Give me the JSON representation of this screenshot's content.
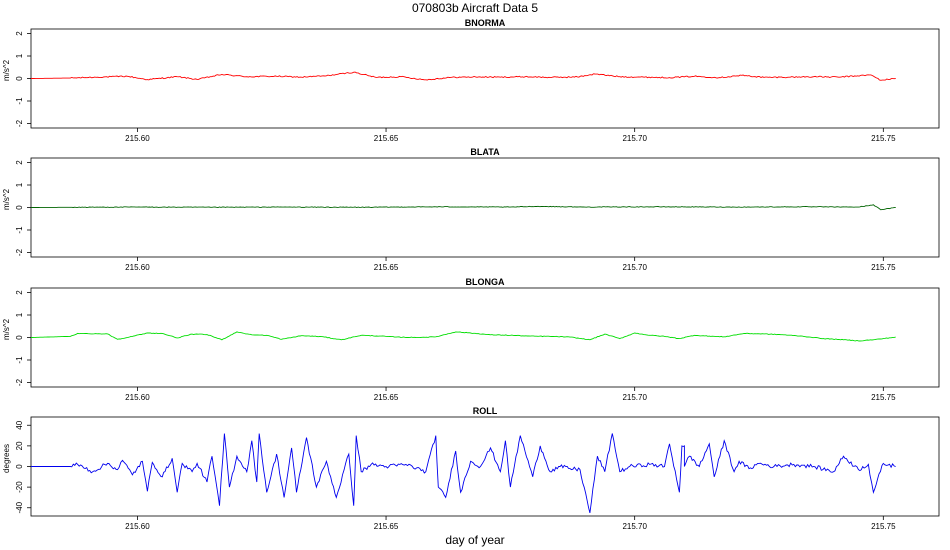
{
  "figure": {
    "title": "070803b   Aircraft Data 5",
    "xlabel": "day of year"
  },
  "chart_data": [
    {
      "type": "line",
      "title": "BNORMA",
      "ylabel": "m/s^2",
      "color": "#ff0000",
      "xlim": [
        215.5786,
        215.7612
      ],
      "ylim": [
        -2.2,
        2.2
      ],
      "xticks": [
        "215.60",
        "215.65",
        "215.70",
        "215.75"
      ],
      "yticks": [
        "-2",
        "-1",
        "0",
        "1",
        "2"
      ],
      "series": [
        {
          "x": [
            215.5786,
            215.5865,
            215.592,
            215.598,
            215.602,
            215.608,
            215.612,
            215.617,
            215.622,
            215.628,
            215.633,
            215.638,
            215.6435,
            215.648,
            215.653,
            215.658,
            215.663,
            215.668,
            215.673,
            215.678,
            215.683,
            215.6885,
            215.692,
            215.697,
            215.702,
            215.707,
            215.712,
            215.717,
            215.7215,
            215.726,
            215.731,
            215.736,
            215.741,
            215.7475,
            215.7495,
            215.7525
          ],
          "y": [
            0,
            0.02,
            0.06,
            0.1,
            -0.05,
            0.08,
            -0.04,
            0.18,
            0.08,
            0.1,
            0.06,
            0.12,
            0.28,
            0.05,
            0.08,
            -0.06,
            0.05,
            0.07,
            0.06,
            0.08,
            0.05,
            0.07,
            0.2,
            0.08,
            0.06,
            0.04,
            0.1,
            0.04,
            0.14,
            0.05,
            0.06,
            0.08,
            0.06,
            0.16,
            -0.08,
            0
          ]
        }
      ]
    },
    {
      "type": "line",
      "title": "BLATA",
      "ylabel": "m/s^2",
      "color": "#006400",
      "xlim": [
        215.5786,
        215.7612
      ],
      "ylim": [
        -2.2,
        2.2
      ],
      "xticks": [
        "215.60",
        "215.65",
        "215.70",
        "215.75"
      ],
      "yticks": [
        "-2",
        "-1",
        "0",
        "1",
        "2"
      ],
      "series": [
        {
          "x": [
            215.5786,
            215.5865,
            215.6,
            215.615,
            215.63,
            215.645,
            215.66,
            215.675,
            215.68,
            215.69,
            215.705,
            215.72,
            215.735,
            215.745,
            215.748,
            215.7495,
            215.7525
          ],
          "y": [
            0,
            0.01,
            0.02,
            0.01,
            0.02,
            0.01,
            0.03,
            0.02,
            0.05,
            0.02,
            0.03,
            0.02,
            0.03,
            0.02,
            0.12,
            -0.1,
            0
          ]
        }
      ]
    },
    {
      "type": "line",
      "title": "BLONGA",
      "ylabel": "m/s^2",
      "color": "#00dd00",
      "xlim": [
        215.5786,
        215.7612
      ],
      "ylim": [
        -2.2,
        2.2
      ],
      "xticks": [
        "215.60",
        "215.65",
        "215.70",
        "215.75"
      ],
      "yticks": [
        "-2",
        "-1",
        "0",
        "1",
        "2"
      ],
      "series": [
        {
          "x": [
            215.5786,
            215.5865,
            215.588,
            215.594,
            215.596,
            215.599,
            215.602,
            215.605,
            215.608,
            215.611,
            215.614,
            215.617,
            215.62,
            215.623,
            215.626,
            215.629,
            215.633,
            215.637,
            215.641,
            215.645,
            215.649,
            215.652,
            215.656,
            215.66,
            215.664,
            215.667,
            215.671,
            215.675,
            215.679,
            215.683,
            215.687,
            215.691,
            215.694,
            215.697,
            215.7,
            215.703,
            215.706,
            215.709,
            215.712,
            215.715,
            215.718,
            215.722,
            215.726,
            215.73,
            215.734,
            215.738,
            215.742,
            215.745,
            215.748,
            215.75,
            215.7525
          ],
          "y": [
            0,
            0.05,
            0.18,
            0.16,
            -0.08,
            0.05,
            0.2,
            0.18,
            -0.02,
            0.15,
            0.13,
            -0.1,
            0.25,
            0.12,
            0.1,
            -0.08,
            0.08,
            0.04,
            -0.1,
            0.1,
            0.06,
            0.02,
            0,
            0.03,
            0.25,
            0.2,
            0.12,
            0.1,
            0.06,
            0.05,
            0.02,
            -0.1,
            0.15,
            -0.05,
            0.2,
            0.1,
            0.05,
            -0.05,
            0.1,
            0.06,
            0.03,
            0.18,
            0.16,
            0.12,
            0.05,
            -0.05,
            -0.1,
            -0.15,
            -0.1,
            -0.05,
            0.02
          ]
        }
      ]
    },
    {
      "type": "line",
      "title": "ROLL",
      "ylabel": "degrees",
      "color": "#0000ee",
      "xlim": [
        215.5786,
        215.7612
      ],
      "ylim": [
        -48,
        48
      ],
      "xticks": [
        "215.60",
        "215.65",
        "215.70",
        "215.75"
      ],
      "yticks": [
        "-40",
        "-20",
        "0",
        "20",
        "40"
      ],
      "series": [
        {
          "x": [
            215.5786,
            215.5865,
            215.588,
            215.591,
            215.594,
            215.596,
            215.597,
            215.599,
            215.601,
            215.602,
            215.603,
            215.605,
            215.607,
            215.608,
            215.609,
            215.611,
            215.612,
            215.614,
            215.615,
            215.6165,
            215.6175,
            215.6185,
            215.62,
            215.622,
            215.623,
            215.624,
            215.6245,
            215.626,
            215.628,
            215.6295,
            215.631,
            215.632,
            215.634,
            215.636,
            215.638,
            215.64,
            215.6425,
            215.6435,
            215.644,
            215.645,
            215.647,
            215.65,
            215.654,
            215.658,
            215.66,
            215.6605,
            215.662,
            215.664,
            215.665,
            215.667,
            215.669,
            215.671,
            215.673,
            215.674,
            215.675,
            215.677,
            215.6795,
            215.681,
            215.683,
            215.685,
            215.687,
            215.689,
            215.691,
            215.6925,
            215.694,
            215.6955,
            215.697,
            215.699,
            215.703,
            215.706,
            215.707,
            215.709,
            215.7095,
            215.71,
            215.71,
            215.711,
            215.713,
            215.715,
            215.716,
            215.718,
            215.72,
            215.721,
            215.723,
            215.725,
            215.728,
            215.732,
            215.736,
            215.74,
            215.742,
            215.745,
            215.747,
            215.748,
            215.75,
            215.7525
          ],
          "y": [
            0,
            0,
            2,
            -5,
            3,
            -3,
            6,
            -8,
            5,
            -24,
            4,
            -10,
            8,
            -25,
            3,
            -5,
            3,
            -15,
            10,
            -38,
            32,
            -20,
            10,
            -5,
            25,
            -15,
            32,
            -25,
            12,
            -30,
            18,
            -25,
            28,
            -20,
            5,
            -30,
            12,
            -38,
            30,
            -5,
            2,
            0,
            2,
            -5,
            30,
            -20,
            -30,
            15,
            -25,
            5,
            0,
            18,
            -5,
            25,
            -20,
            30,
            -10,
            20,
            -5,
            0,
            -2,
            -3,
            -45,
            10,
            -5,
            32,
            -5,
            0,
            2,
            0,
            22,
            -25,
            20,
            20,
            0,
            10,
            0,
            22,
            -10,
            25,
            -5,
            5,
            -2,
            3,
            0,
            2,
            0,
            -5,
            10,
            -3,
            2,
            -25,
            3,
            0
          ]
        }
      ]
    }
  ]
}
